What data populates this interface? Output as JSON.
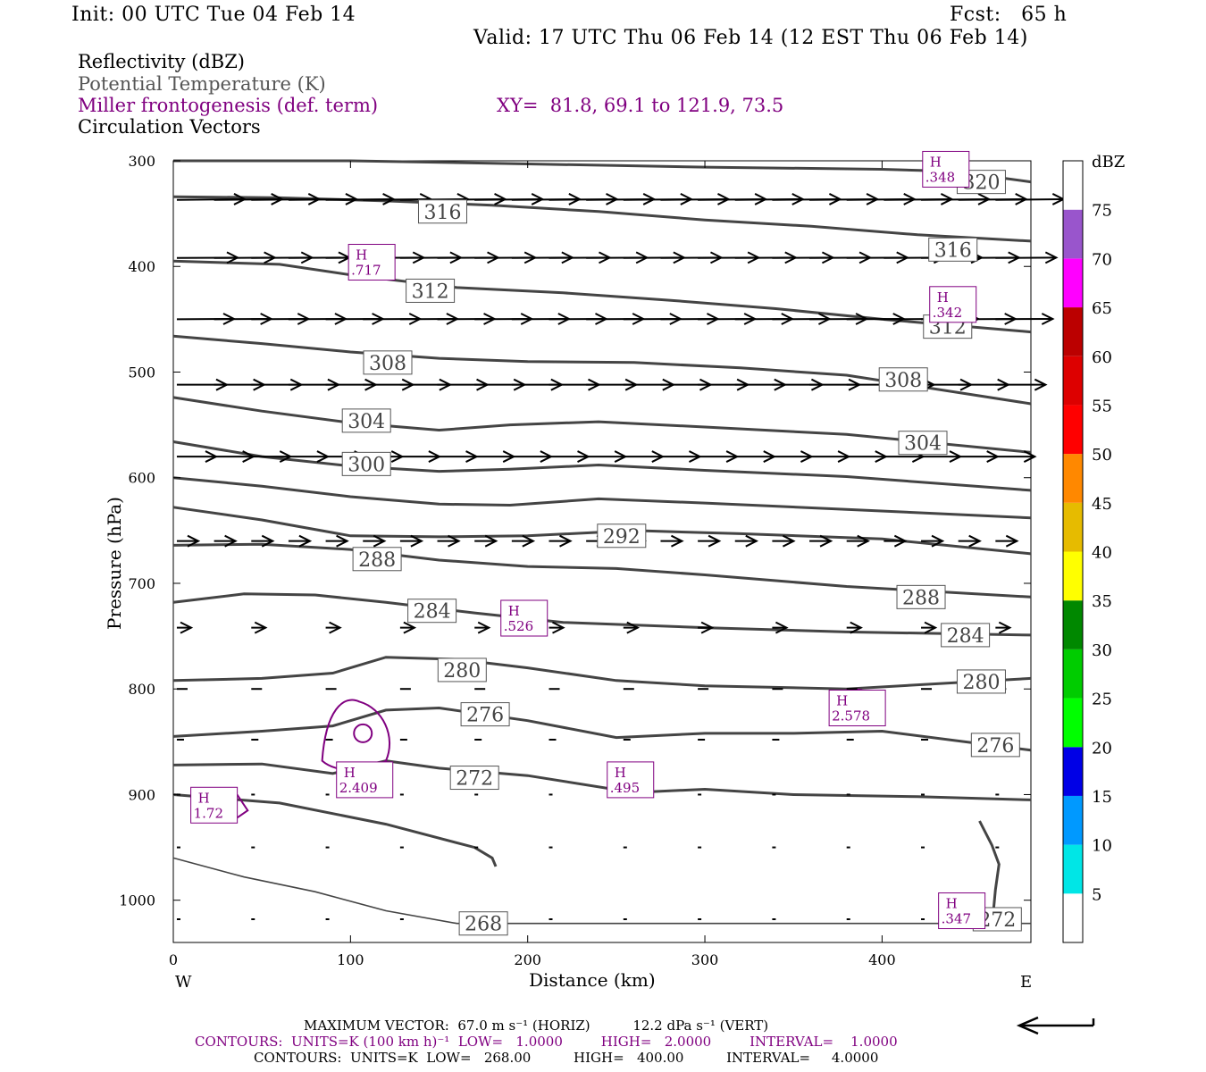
{
  "header": {
    "init": "Init: 00 UTC Tue 04 Feb 14",
    "fcst": "Fcst:   65 h",
    "valid": "Valid: 17 UTC Thu 06 Feb 14 (12 EST Thu 06 Feb 14)"
  },
  "legend": {
    "reflectivity": "Reflectivity (dBZ)",
    "theta": "Potential Temperature (K)",
    "miller": "Miller frontogenesis (def. term)",
    "xy": "XY=  81.8, 69.1 to 121.9, 73.5",
    "vectors": "Circulation Vectors"
  },
  "colors": {
    "theta": "#444444",
    "miller": "#800080"
  },
  "chart_data": {
    "type": "line",
    "xlabel": "Distance (km)",
    "ylabel": "Pressure (hPa)",
    "xlim": [
      0,
      484
    ],
    "ylim": [
      1040,
      300
    ],
    "x_ticks": [
      0,
      100,
      200,
      300,
      400
    ],
    "y_ticks": [
      300,
      400,
      500,
      600,
      700,
      800,
      900,
      1000
    ],
    "x_end_labels": {
      "left": "W",
      "right": "E"
    },
    "theta_contours": [
      {
        "value": 320,
        "x": [
          0,
          100,
          200,
          300,
          400,
          440,
          484
        ],
        "p": [
          300,
          300,
          303,
          306,
          308,
          310,
          320
        ]
      },
      {
        "value": 316,
        "x": [
          0,
          60,
          120,
          180,
          240,
          300,
          360,
          420,
          484
        ],
        "p": [
          334,
          335,
          338,
          342,
          348,
          356,
          362,
          370,
          376
        ]
      },
      {
        "value": 312,
        "x": [
          0,
          60,
          100,
          160,
          220,
          280,
          340,
          400,
          484
        ],
        "p": [
          395,
          398,
          408,
          420,
          425,
          432,
          440,
          450,
          462
        ]
      },
      {
        "value": 308,
        "x": [
          0,
          50,
          100,
          150,
          200,
          260,
          320,
          380,
          484
        ],
        "p": [
          466,
          473,
          481,
          487,
          490,
          491,
          496,
          503,
          530
        ]
      },
      {
        "value": 304,
        "x": [
          0,
          50,
          100,
          150,
          190,
          240,
          300,
          380,
          484
        ],
        "p": [
          524,
          537,
          548,
          555,
          550,
          547,
          552,
          559,
          576
        ]
      },
      {
        "value": 300,
        "x": [
          0,
          50,
          100,
          150,
          190,
          240,
          300,
          380,
          484
        ],
        "p": [
          566,
          580,
          589,
          594,
          592,
          588,
          593,
          599,
          612
        ]
      },
      {
        "value": 296,
        "x": [
          0,
          50,
          100,
          150,
          190,
          240,
          300,
          380,
          484
        ],
        "p": [
          600,
          608,
          618,
          625,
          626,
          620,
          624,
          630,
          638
        ]
      },
      {
        "value": 292,
        "x": [
          0,
          50,
          100,
          150,
          200,
          260,
          320,
          400,
          484
        ],
        "p": [
          628,
          640,
          655,
          656,
          655,
          650,
          653,
          658,
          672
        ]
      },
      {
        "value": 288,
        "x": [
          0,
          50,
          100,
          150,
          200,
          250,
          300,
          380,
          484
        ],
        "p": [
          664,
          663,
          668,
          678,
          684,
          686,
          692,
          703,
          713
        ]
      },
      {
        "value": 284,
        "x": [
          0,
          40,
          80,
          120,
          170,
          220,
          300,
          380,
          484
        ],
        "p": [
          718,
          710,
          711,
          718,
          728,
          737,
          742,
          746,
          749
        ]
      },
      {
        "value": 280,
        "x": [
          0,
          50,
          90,
          120,
          160,
          200,
          250,
          300,
          380,
          484
        ],
        "p": [
          792,
          790,
          785,
          770,
          772,
          780,
          792,
          797,
          800,
          790
        ]
      },
      {
        "value": 276,
        "x": [
          0,
          50,
          90,
          120,
          150,
          200,
          250,
          300,
          350,
          400,
          484
        ],
        "p": [
          845,
          840,
          835,
          820,
          818,
          830,
          846,
          842,
          842,
          840,
          858
        ]
      },
      {
        "value": 272,
        "x": [
          0,
          50,
          90,
          120,
          150,
          200,
          260,
          300,
          350,
          420,
          484
        ],
        "p": [
          872,
          871,
          880,
          868,
          875,
          882,
          898,
          895,
          900,
          902,
          905
        ]
      },
      {
        "value": 272,
        "x": [
          0,
          60,
          120,
          170,
          180,
          182
        ],
        "p": [
          900,
          908,
          928,
          950,
          960,
          968
        ],
        "note": "west-branch"
      },
      {
        "value": 272,
        "x": [
          455,
          462,
          466,
          464,
          462
        ],
        "p": [
          925,
          948,
          966,
          990,
          1025
        ],
        "note": "east-branch"
      },
      {
        "value": 268,
        "x": [
          0,
          40,
          80,
          120,
          160,
          200,
          300,
          400,
          484
        ],
        "p": [
          960,
          978,
          992,
          1010,
          1022,
          1022,
          1022,
          1022,
          1022
        ]
      }
    ],
    "contour_labels": [
      {
        "text": "320",
        "x": 456,
        "p": 320
      },
      {
        "text": "316",
        "x": 152,
        "p": 348
      },
      {
        "text": "316",
        "x": 440,
        "p": 384
      },
      {
        "text": "312",
        "x": 145,
        "p": 423
      },
      {
        "text": "312",
        "x": 437,
        "p": 457
      },
      {
        "text": "308",
        "x": 121,
        "p": 491
      },
      {
        "text": "308",
        "x": 412,
        "p": 507
      },
      {
        "text": "304",
        "x": 109,
        "p": 546
      },
      {
        "text": "304",
        "x": 423,
        "p": 567
      },
      {
        "text": "300",
        "x": 109,
        "p": 587
      },
      {
        "text": "292",
        "x": 253,
        "p": 655
      },
      {
        "text": "288",
        "x": 115,
        "p": 677
      },
      {
        "text": "288",
        "x": 422,
        "p": 713
      },
      {
        "text": "284",
        "x": 146,
        "p": 726
      },
      {
        "text": "284",
        "x": 447,
        "p": 749
      },
      {
        "text": "280",
        "x": 163,
        "p": 782
      },
      {
        "text": "280",
        "x": 456,
        "p": 793
      },
      {
        "text": "276",
        "x": 176,
        "p": 824
      },
      {
        "text": "276",
        "x": 464,
        "p": 853
      },
      {
        "text": "272",
        "x": 170,
        "p": 884
      },
      {
        "text": "268",
        "x": 175,
        "p": 1022
      },
      {
        "text": "272",
        "x": 465,
        "p": 1018
      }
    ],
    "frontogenesis_maxima": [
      {
        "label": "H",
        "value": ".348",
        "x": 436,
        "p": 308
      },
      {
        "label": "H",
        "value": ".717",
        "x": 112,
        "p": 396
      },
      {
        "label": "H",
        "value": ".342",
        "x": 440,
        "p": 436
      },
      {
        "label": "H",
        "value": ".526",
        "x": 198,
        "p": 733
      },
      {
        "label": "H",
        "value": "2.578",
        "x": 386,
        "p": 818
      },
      {
        "label": "H",
        "value": "2.409",
        "x": 108,
        "p": 886
      },
      {
        "label": "H",
        "value": ".495",
        "x": 258,
        "p": 886
      },
      {
        "label": "H",
        "value": "1.72",
        "x": 23,
        "p": 910
      },
      {
        "label": "H",
        "value": ".347",
        "x": 445,
        "p": 1010
      }
    ],
    "vector_rows": [
      {
        "p": 337,
        "u": 0.95,
        "w": -0.02
      },
      {
        "p": 392,
        "u": 0.85,
        "w": -0.01
      },
      {
        "p": 450,
        "u": 0.8,
        "w": -0.01
      },
      {
        "p": 512,
        "u": 0.7,
        "w": 0.0
      },
      {
        "p": 580,
        "u": 0.55,
        "w": 0.0
      },
      {
        "p": 660,
        "u": 0.3,
        "w": 0.0
      },
      {
        "p": 742,
        "u": 0.2,
        "w": 0.0
      },
      {
        "p": 800,
        "u": 0.15,
        "w": 0.0
      },
      {
        "p": 848,
        "u": 0.1,
        "w": 0.0
      },
      {
        "p": 900,
        "u": 0.05,
        "w": 0.0
      },
      {
        "p": 950,
        "u": 0.03,
        "w": 0.0
      },
      {
        "p": 1018,
        "u": 0.02,
        "w": 0.0
      }
    ],
    "colorbar": {
      "unit": "dBZ",
      "levels": [
        "5",
        "10",
        "15",
        "20",
        "25",
        "30",
        "35",
        "40",
        "45",
        "50",
        "55",
        "60",
        "65",
        "70",
        "75"
      ],
      "colors": [
        "#ffffff",
        "#00e6e6",
        "#0099ff",
        "#0000e6",
        "#00ff00",
        "#00cc00",
        "#008800",
        "#ffff00",
        "#e6bb00",
        "#ff8800",
        "#ff0000",
        "#dd0000",
        "#bb0000",
        "#ff00ff",
        "#9955cc",
        "#ffffff"
      ]
    }
  },
  "footer": {
    "line1": "MAXIMUM VECTOR:  67.0 m s⁻¹ (HORIZ)          12.2 dPa s⁻¹ (VERT)",
    "line2": "CONTOURS:  UNITS=K (100 km h)⁻¹  LOW=   1.0000         HIGH=   2.0000         INTERVAL=    1.0000",
    "line3": "CONTOURS:  UNITS=K  LOW=   268.00          HIGH=   400.00          INTERVAL=     4.0000"
  }
}
